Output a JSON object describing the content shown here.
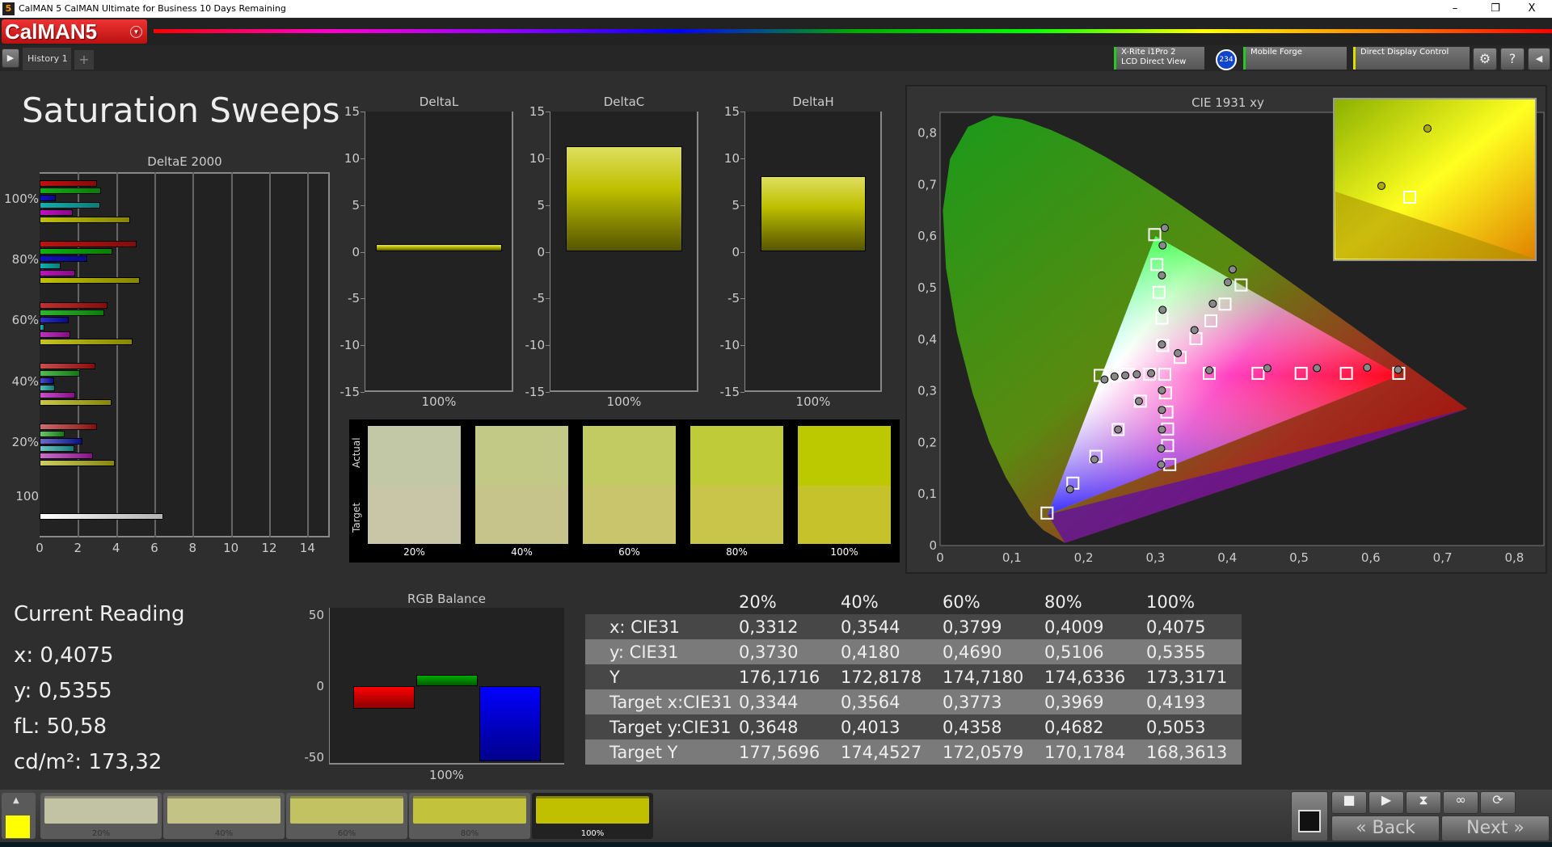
{
  "window": {
    "title": "CalMAN 5 CalMAN Ultimate for Business 10 Days Remaining",
    "min": "–",
    "max": "❐",
    "close": "X"
  },
  "app": {
    "logo": "CalMAN5"
  },
  "tabs": [
    {
      "label": "History 1"
    }
  ],
  "devices": [
    {
      "label1": "X-Rite i1Pro 2",
      "label2": "LCD Direct View",
      "badge": "234",
      "accent": "#22cc22"
    },
    {
      "label1": "Mobile Forge",
      "label2": "",
      "accent": "#22cc22"
    },
    {
      "label1": "Direct Display Control",
      "label2": "",
      "accent": "#dddd00"
    }
  ],
  "page": {
    "title": "Saturation Sweeps"
  },
  "chart_data": [
    {
      "type": "bar",
      "title": "DeltaE 2000",
      "orientation": "horizontal",
      "categories": [
        "100%",
        "80%",
        "60%",
        "40%",
        "20%",
        "100"
      ],
      "xlim": [
        0,
        15
      ],
      "xticks": [
        "0",
        "2",
        "4",
        "6",
        "8",
        "10",
        "12",
        "14"
      ],
      "grid": true,
      "series_colors": [
        "#c01010",
        "#10b010",
        "#1010c0",
        "#10b0b0",
        "#c010c0",
        "#c0c000"
      ],
      "groups": [
        [
          3.0,
          3.2,
          0.85,
          3.15,
          1.75,
          4.75
        ],
        [
          5.05,
          3.8,
          2.5,
          1.1,
          1.85,
          5.25
        ],
        [
          3.55,
          3.4,
          1.5,
          0.25,
          1.6,
          4.85
        ],
        [
          2.9,
          2.1,
          0.75,
          0.8,
          1.85,
          3.75
        ],
        [
          3.0,
          1.3,
          2.25,
          1.8,
          2.8,
          3.95
        ],
        [
          6.45
        ]
      ]
    },
    {
      "type": "bar",
      "title": "DeltaL",
      "categories": [
        "100%"
      ],
      "values": [
        0.8
      ],
      "ylim": [
        -15,
        15
      ],
      "yticks": [
        "15",
        "10",
        "5",
        "0",
        "-5",
        "-10",
        "-15"
      ]
    },
    {
      "type": "bar",
      "title": "DeltaC",
      "categories": [
        "100%"
      ],
      "values": [
        11.3
      ],
      "ylim": [
        -15,
        15
      ],
      "yticks": [
        "15",
        "10",
        "5",
        "0",
        "-5",
        "-10",
        "-15"
      ]
    },
    {
      "type": "bar",
      "title": "DeltaH",
      "categories": [
        "100%"
      ],
      "values": [
        8.1
      ],
      "ylim": [
        -15,
        15
      ],
      "yticks": [
        "15",
        "10",
        "5",
        "0",
        "-5",
        "-10",
        "-15"
      ]
    },
    {
      "type": "scatter",
      "title": "CIE 1931 xy",
      "xlim": [
        0,
        0.8
      ],
      "ylim": [
        0,
        0.85
      ],
      "xticks": [
        "0",
        "0,1",
        "0,2",
        "0,3",
        "0,4",
        "0,5",
        "0,6",
        "0,7",
        "0,8"
      ],
      "yticks": [
        "0",
        "0,1",
        "0,2",
        "0,3",
        "0,4",
        "0,5",
        "0,6",
        "0,7",
        "0,8"
      ],
      "gamut": [
        [
          0.64,
          0.33
        ],
        [
          0.3,
          0.6
        ],
        [
          0.15,
          0.06
        ]
      ],
      "targets": [
        [
          0.313,
          0.332
        ],
        [
          0.375,
          0.334
        ],
        [
          0.443,
          0.334
        ],
        [
          0.503,
          0.334
        ],
        [
          0.566,
          0.334
        ],
        [
          0.639,
          0.334
        ],
        [
          0.31,
          0.388
        ],
        [
          0.309,
          0.441
        ],
        [
          0.305,
          0.491
        ],
        [
          0.302,
          0.545
        ],
        [
          0.299,
          0.603
        ],
        [
          0.279,
          0.28
        ],
        [
          0.248,
          0.225
        ],
        [
          0.217,
          0.173
        ],
        [
          0.185,
          0.121
        ],
        [
          0.149,
          0.063
        ],
        [
          0.292,
          0.332
        ],
        [
          0.262,
          0.332
        ],
        [
          0.243,
          0.33
        ],
        [
          0.223,
          0.33
        ],
        [
          0.314,
          0.296
        ],
        [
          0.316,
          0.259
        ],
        [
          0.317,
          0.226
        ],
        [
          0.317,
          0.194
        ],
        [
          0.32,
          0.157
        ],
        [
          0.3344,
          0.3648
        ],
        [
          0.3564,
          0.4013
        ],
        [
          0.3773,
          0.4358
        ],
        [
          0.3969,
          0.4682
        ],
        [
          0.4193,
          0.5053
        ]
      ],
      "measured": [
        [
          0.375,
          0.34
        ],
        [
          0.456,
          0.344
        ],
        [
          0.525,
          0.344
        ],
        [
          0.595,
          0.345
        ],
        [
          0.638,
          0.341
        ],
        [
          0.309,
          0.39
        ],
        [
          0.31,
          0.457
        ],
        [
          0.309,
          0.524
        ],
        [
          0.31,
          0.582
        ],
        [
          0.313,
          0.616
        ],
        [
          0.277,
          0.28
        ],
        [
          0.248,
          0.225
        ],
        [
          0.215,
          0.167
        ],
        [
          0.181,
          0.109
        ],
        [
          0.294,
          0.334
        ],
        [
          0.274,
          0.332
        ],
        [
          0.258,
          0.33
        ],
        [
          0.243,
          0.328
        ],
        [
          0.229,
          0.322
        ],
        [
          0.309,
          0.301
        ],
        [
          0.309,
          0.263
        ],
        [
          0.309,
          0.225
        ],
        [
          0.308,
          0.188
        ],
        [
          0.308,
          0.157
        ],
        [
          0.3312,
          0.373
        ],
        [
          0.3544,
          0.418
        ],
        [
          0.3799,
          0.469
        ],
        [
          0.4009,
          0.5106
        ],
        [
          0.4075,
          0.5355
        ]
      ]
    },
    {
      "type": "bar",
      "title": "RGB Balance",
      "categories": [
        "100%"
      ],
      "series": [
        {
          "color": "#ff0000",
          "value": -16
        },
        {
          "color": "#00aa00",
          "value": 8
        },
        {
          "color": "#0000ff",
          "value": -53
        }
      ],
      "ylim": [
        -55,
        55
      ],
      "yticks": [
        "50",
        "0",
        "-50"
      ]
    }
  ],
  "swatches": {
    "actual_label": "Actual",
    "target_label": "Target",
    "items": [
      {
        "label": "20%",
        "actual": "#c2c7a6",
        "target": "#c8c6a6"
      },
      {
        "label": "40%",
        "actual": "#c2c886",
        "target": "#c6c48a"
      },
      {
        "label": "60%",
        "actual": "#c2ca62",
        "target": "#c8c56c"
      },
      {
        "label": "80%",
        "actual": "#c0cb3a",
        "target": "#c8c54a"
      },
      {
        "label": "100%",
        "actual": "#bcc800",
        "target": "#c6c22c"
      }
    ]
  },
  "current_reading": {
    "title": "Current Reading",
    "x": "x: 0,4075",
    "y": "y: 0,5355",
    "fl": "fL: 50,58",
    "cdm2": "cd/m²: 173,32"
  },
  "table": {
    "headers": [
      "",
      "20%",
      "40%",
      "60%",
      "80%",
      "100%"
    ],
    "rows": [
      [
        "x: CIE31",
        "0,3312",
        "0,3544",
        "0,3799",
        "0,4009",
        "0,4075"
      ],
      [
        "y: CIE31",
        "0,3730",
        "0,4180",
        "0,4690",
        "0,5106",
        "0,5355"
      ],
      [
        "Y",
        "176,1716",
        "172,8178",
        "174,7180",
        "174,6336",
        "173,3171"
      ],
      [
        "Target x:CIE31",
        "0,3344",
        "0,3564",
        "0,3773",
        "0,3969",
        "0,4193"
      ],
      [
        "Target y:CIE31",
        "0,3648",
        "0,4013",
        "0,4358",
        "0,4682",
        "0,5053"
      ],
      [
        "Target Y",
        "177,5696",
        "174,4527",
        "172,0579",
        "170,1784",
        "168,3613"
      ]
    ]
  },
  "bottom": {
    "current_color": "#ffff00",
    "patches": [
      {
        "label": "20%",
        "color": "#c2c2a4"
      },
      {
        "label": "40%",
        "color": "#c3c385"
      },
      {
        "label": "60%",
        "color": "#c3c262"
      },
      {
        "label": "80%",
        "color": "#c2c23c"
      },
      {
        "label": "100%",
        "color": "#c0c000",
        "selected": true
      }
    ],
    "back": "Back",
    "next": "Next"
  }
}
